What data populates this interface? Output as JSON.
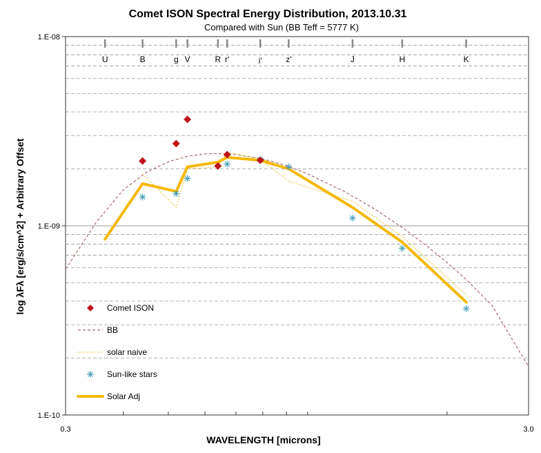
{
  "chart_data": {
    "type": "line",
    "title": "Comet ISON Spectral Energy Distribution, 2013.10.31",
    "subtitle": "Compared with Sun (BB Teff = 5777 K)",
    "xlabel": "WAVELENGTH [microns]",
    "ylabel": "log λFλ [erg/s/cm^2] + Arbitrary Offset",
    "x_scale": "log",
    "y_scale": "log",
    "xlim": [
      0.3,
      3.0
    ],
    "ylim": [
      1e-10,
      1e-08
    ],
    "x_tick_labels": [
      {
        "value": 0.3,
        "label": "0.3"
      },
      {
        "value": 3.0,
        "label": "3.0"
      }
    ],
    "y_tick_labels": [
      {
        "value": 1e-08,
        "label": "1.E-08"
      },
      {
        "value": 1e-09,
        "label": "1.E-09"
      },
      {
        "value": 1e-10,
        "label": "1.E-10"
      }
    ],
    "grid": "horizontal dashed",
    "legend_position": "lower-left",
    "bands": [
      {
        "label": "U",
        "wavelength": 0.365
      },
      {
        "label": "B",
        "wavelength": 0.44
      },
      {
        "label": "g",
        "wavelength": 0.52
      },
      {
        "label": "V",
        "wavelength": 0.55
      },
      {
        "label": "R",
        "wavelength": 0.64
      },
      {
        "label": "r'",
        "wavelength": 0.67
      },
      {
        "label": "i'",
        "wavelength": 0.79
      },
      {
        "label": "z'",
        "wavelength": 0.91
      },
      {
        "label": "J",
        "wavelength": 1.25
      },
      {
        "label": "H",
        "wavelength": 1.6
      },
      {
        "label": "K",
        "wavelength": 2.2
      }
    ],
    "series": [
      {
        "name": "Comet ISON",
        "kind": "marker-diamond",
        "color": "#c0141c",
        "points": [
          [
            0.44,
            2.2e-09
          ],
          [
            0.52,
            2.72e-09
          ],
          [
            0.55,
            3.65e-09
          ],
          [
            0.64,
            2.07e-09
          ],
          [
            0.67,
            2.38e-09
          ],
          [
            0.79,
            2.22e-09
          ]
        ]
      },
      {
        "name": "BB",
        "kind": "line-dashed",
        "color": "#a86a6a",
        "points": [
          [
            0.3,
            5.9e-10
          ],
          [
            0.35,
            1.05e-09
          ],
          [
            0.4,
            1.55e-09
          ],
          [
            0.45,
            1.93e-09
          ],
          [
            0.5,
            2.18e-09
          ],
          [
            0.55,
            2.33e-09
          ],
          [
            0.6,
            2.4e-09
          ],
          [
            0.65,
            2.41e-09
          ],
          [
            0.7,
            2.38e-09
          ],
          [
            0.8,
            2.26e-09
          ],
          [
            0.9,
            2.08e-09
          ],
          [
            1.0,
            1.88e-09
          ],
          [
            1.2,
            1.52e-09
          ],
          [
            1.4,
            1.22e-09
          ],
          [
            1.6,
            9.8e-10
          ],
          [
            1.8,
            7.9e-10
          ],
          [
            2.0,
            6.4e-10
          ],
          [
            2.2,
            5.2e-10
          ],
          [
            2.5,
            3.8e-10
          ],
          [
            3.0,
            1.8e-10
          ]
        ]
      },
      {
        "name": "solar naive",
        "kind": "line-dotted",
        "color": "#e8c43a",
        "points": [
          [
            0.44,
            1.88e-09
          ],
          [
            0.52,
            1.25e-09
          ],
          [
            0.55,
            2e-09
          ],
          [
            0.64,
            2.05e-09
          ],
          [
            0.67,
            2.45e-09
          ],
          [
            0.79,
            2.25e-09
          ],
          [
            0.91,
            1.72e-09
          ],
          [
            1.25,
            1.35e-09
          ],
          [
            1.6,
            8.8e-10
          ],
          [
            2.2,
            4.3e-10
          ]
        ]
      },
      {
        "name": "Sun-like stars",
        "kind": "marker-asterisk",
        "color": "#3a9ab5",
        "points": [
          [
            0.44,
            1.42e-09
          ],
          [
            0.52,
            1.48e-09
          ],
          [
            0.55,
            1.78e-09
          ],
          [
            0.67,
            2.12e-09
          ],
          [
            0.79,
            2.24e-09
          ],
          [
            0.91,
            2.05e-09
          ],
          [
            1.25,
            1.1e-09
          ],
          [
            1.6,
            7.6e-10
          ],
          [
            2.2,
            3.65e-10
          ]
        ]
      },
      {
        "name": "Solar Adj",
        "kind": "line-thick",
        "color": "#f5b800",
        "points": [
          [
            0.365,
            8.5e-10
          ],
          [
            0.44,
            1.67e-09
          ],
          [
            0.52,
            1.52e-09
          ],
          [
            0.55,
            2.05e-09
          ],
          [
            0.64,
            2.17e-09
          ],
          [
            0.67,
            2.3e-09
          ],
          [
            0.79,
            2.22e-09
          ],
          [
            0.91,
            2e-09
          ],
          [
            1.25,
            1.25e-09
          ],
          [
            1.6,
            8.2e-10
          ],
          [
            2.2,
            3.95e-10
          ]
        ]
      }
    ]
  }
}
